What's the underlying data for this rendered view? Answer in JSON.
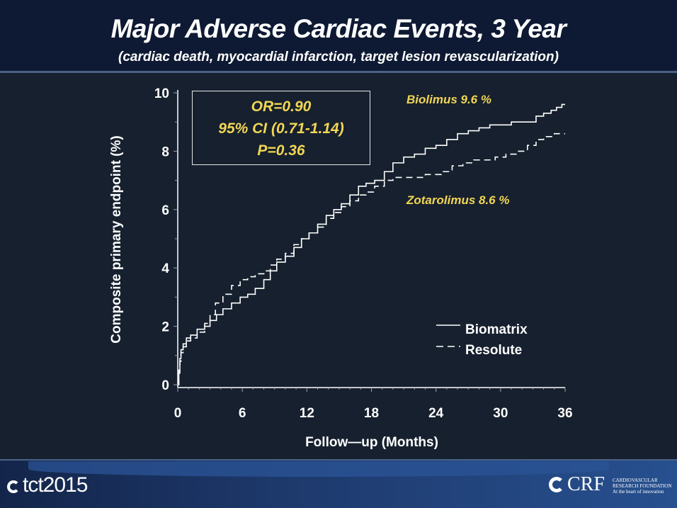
{
  "header": {
    "title": "Major Adverse Cardiac Events, 3 Year",
    "subtitle": "(cardiac death, myocardial infarction, target lesion revascularization)"
  },
  "stats_box": {
    "line1": "OR=0.90",
    "line2": "95% CI (0.71-1.14)",
    "line3": "P=0.36"
  },
  "annotations": {
    "biolimus": "Biolimus  9.6 %",
    "zotarolimus": "Zotarolimus  8.6 %"
  },
  "footer": {
    "left_logo_text": "tct2015",
    "right_logo_text": "CRF",
    "right_tagline": [
      "CARDIOVASCULAR",
      "RESEARCH FOUNDATION",
      "At the heart of innovation"
    ]
  },
  "colors": {
    "background": "#16202e",
    "header": "#0e1a33",
    "accent_text": "#f2d654",
    "line": "#ffffff"
  },
  "chart_data": {
    "type": "line",
    "subtype": "kaplan-meier step",
    "title": "Major Adverse Cardiac Events, 3 Year",
    "xlabel": "Follow—up  (Months)",
    "ylabel": "Composite  primary  endpoint  (%)",
    "xlim": [
      0,
      36
    ],
    "ylim": [
      0,
      10
    ],
    "xticks": [
      0,
      6,
      12,
      18,
      24,
      30,
      36
    ],
    "yticks": [
      0,
      2,
      4,
      6,
      8,
      10
    ],
    "grid": false,
    "legend": {
      "position": "lower-right",
      "entries": [
        "Biomatrix",
        "Resolute"
      ]
    },
    "series": [
      {
        "name": "Biomatrix",
        "style": "solid",
        "x": [
          0,
          0.1,
          0.2,
          0.3,
          0.5,
          0.8,
          1.2,
          1.8,
          2.5,
          3.0,
          3.6,
          4.2,
          5.0,
          5.8,
          6.5,
          7.2,
          8.0,
          8.6,
          9.2,
          10.0,
          10.8,
          11.5,
          12.2,
          13.0,
          13.8,
          14.5,
          15.2,
          16.0,
          16.8,
          17.5,
          18.3,
          19.2,
          20.0,
          21.0,
          22.0,
          23.0,
          24.0,
          25.0,
          26.0,
          27.0,
          28.0,
          29.0,
          30.0,
          31.0,
          32.0,
          33.3,
          34.0,
          34.7,
          35.2,
          35.7,
          36.0
        ],
        "y": [
          0,
          0.5,
          0.9,
          1.2,
          1.4,
          1.6,
          1.7,
          1.9,
          2.0,
          2.2,
          2.4,
          2.6,
          2.8,
          3.0,
          3.1,
          3.3,
          3.6,
          3.9,
          4.2,
          4.4,
          4.7,
          5.0,
          5.2,
          5.5,
          5.8,
          6.0,
          6.2,
          6.5,
          6.8,
          6.9,
          7.0,
          7.3,
          7.6,
          7.8,
          7.9,
          8.1,
          8.2,
          8.4,
          8.6,
          8.7,
          8.8,
          8.9,
          8.9,
          9.0,
          9.0,
          9.2,
          9.3,
          9.4,
          9.5,
          9.6,
          9.6
        ]
      },
      {
        "name": "Resolute",
        "style": "dashed",
        "x": [
          0,
          0.1,
          0.2,
          0.3,
          0.5,
          0.8,
          1.2,
          1.8,
          2.5,
          3.0,
          3.5,
          4.2,
          5.0,
          5.8,
          6.5,
          7.2,
          8.0,
          8.6,
          9.2,
          10.0,
          10.8,
          11.5,
          12.2,
          13.0,
          13.8,
          14.5,
          15.2,
          16.0,
          16.8,
          17.5,
          18.3,
          19.2,
          20.0,
          21.0,
          22.0,
          23.0,
          24.5,
          25.5,
          26.5,
          27.5,
          28.5,
          29.5,
          30.5,
          31.5,
          32.5,
          33.3,
          34.0,
          35.0,
          36.0
        ],
        "y": [
          0,
          0.4,
          0.8,
          1.1,
          1.3,
          1.5,
          1.6,
          1.8,
          2.1,
          2.4,
          2.8,
          3.1,
          3.4,
          3.6,
          3.7,
          3.8,
          3.9,
          4.1,
          4.3,
          4.5,
          4.8,
          5.0,
          5.2,
          5.4,
          5.7,
          5.9,
          6.1,
          6.3,
          6.5,
          6.6,
          6.8,
          7.0,
          7.1,
          7.1,
          7.1,
          7.2,
          7.3,
          7.5,
          7.6,
          7.7,
          7.7,
          7.8,
          7.9,
          8.0,
          8.2,
          8.4,
          8.5,
          8.6,
          8.6
        ]
      }
    ]
  }
}
